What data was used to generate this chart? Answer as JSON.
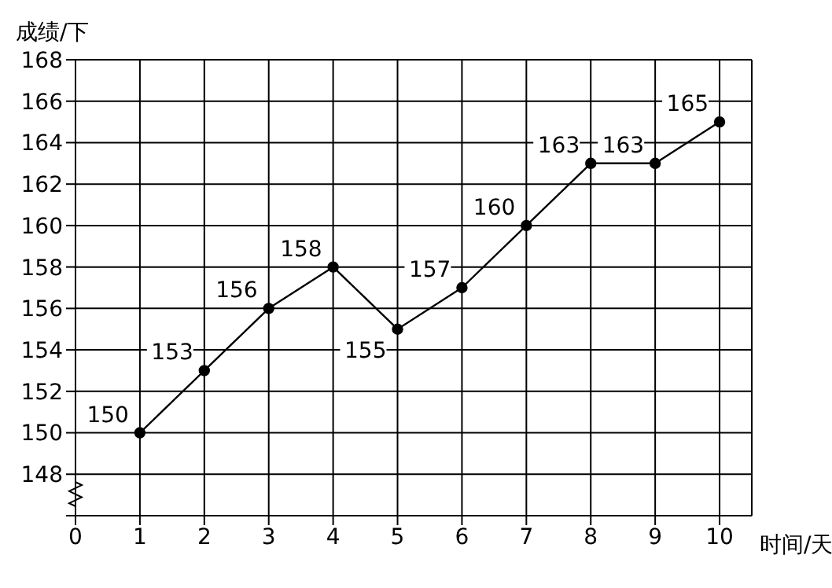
{
  "chart_data": {
    "type": "line",
    "xlabel": "时间/天",
    "ylabel": "成绩/下",
    "x": [
      1,
      2,
      3,
      4,
      5,
      6,
      7,
      8,
      9,
      10
    ],
    "series": [
      {
        "color": "#000000",
        "values": [
          150,
          153,
          156,
          158,
          155,
          157,
          160,
          163,
          163,
          165
        ]
      }
    ],
    "xlim": [
      0,
      10.5
    ],
    "xticks": [
      0,
      1,
      2,
      3,
      4,
      5,
      6,
      7,
      8,
      9,
      10
    ],
    "ylim": [
      146,
      168
    ],
    "yticks": [
      {
        "value": 146,
        "label": null
      },
      148,
      150,
      152,
      154,
      156,
      158,
      160,
      162,
      164,
      166,
      168
    ],
    "grid": true,
    "marker": "circle",
    "line_style": "solid",
    "data_labels": true
  }
}
